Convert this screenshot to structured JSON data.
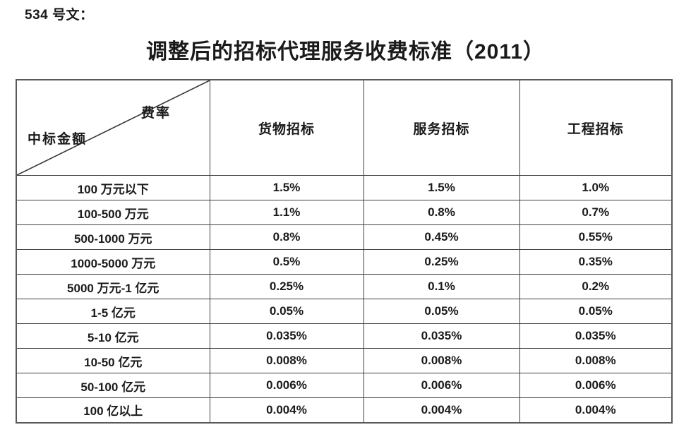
{
  "doc_label": "534 号文：",
  "title": "调整后的招标代理服务收费标准（2011）",
  "table": {
    "corner": {
      "top_label": "费率",
      "bottom_label": "中标金额"
    },
    "columns": [
      "货物招标",
      "服务招标",
      "工程招标"
    ],
    "rows": [
      {
        "label": "100 万元以下",
        "values": [
          "1.5%",
          "1.5%",
          "1.0%"
        ]
      },
      {
        "label": "100-500 万元",
        "values": [
          "1.1%",
          "0.8%",
          "0.7%"
        ]
      },
      {
        "label": "500-1000 万元",
        "values": [
          "0.8%",
          "0.45%",
          "0.55%"
        ]
      },
      {
        "label": "1000-5000 万元",
        "values": [
          "0.5%",
          "0.25%",
          "0.35%"
        ]
      },
      {
        "label": "5000 万元-1 亿元",
        "values": [
          "0.25%",
          "0.1%",
          "0.2%"
        ]
      },
      {
        "label": "1-5 亿元",
        "values": [
          "0.05%",
          "0.05%",
          "0.05%"
        ]
      },
      {
        "label": "5-10 亿元",
        "values": [
          "0.035%",
          "0.035%",
          "0.035%"
        ]
      },
      {
        "label": "10-50 亿元",
        "values": [
          "0.008%",
          "0.008%",
          "0.008%"
        ]
      },
      {
        "label": "50-100 亿元",
        "values": [
          "0.006%",
          "0.006%",
          "0.006%"
        ]
      },
      {
        "label": "100 亿以上",
        "values": [
          "0.004%",
          "0.004%",
          "0.004%"
        ]
      }
    ],
    "colors": {
      "text": "#1a1a1a",
      "inner_border": "#404040",
      "outer_border": "#595959",
      "background": "#ffffff"
    }
  }
}
